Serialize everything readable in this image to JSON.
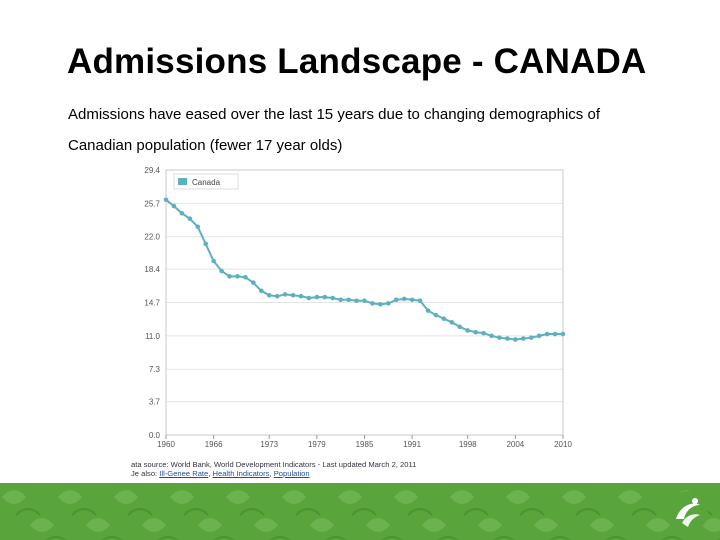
{
  "slide": {
    "title": "Admissions Landscape - CANADA",
    "body_line1": "Admissions have eased over the last 15 years due to changing demographics of",
    "body_line2": "Canadian population (fewer 17 year olds)"
  },
  "source": {
    "line1": "ata source: World Bank, World Development Indicators - Last updated March 2, 2011",
    "line2_prefix": "Je also: ",
    "links": [
      "Ill-Genee Rate",
      "Health Indicators",
      "Population"
    ]
  },
  "colors": {
    "series": "#5fb0bf",
    "footer": "#5aa43c",
    "grid": "#e4e4e4"
  },
  "chart_data": {
    "type": "line",
    "title": "",
    "xlabel": "",
    "ylabel": "",
    "legend": {
      "position": "top-left",
      "entries": [
        "Canada"
      ]
    },
    "grid": true,
    "xlim": [
      1960,
      2010
    ],
    "ylim": [
      0,
      29.4
    ],
    "x_ticks": [
      "1960",
      "1966",
      "1973",
      "1979",
      "1985",
      "1991",
      "1998",
      "2004",
      "2010"
    ],
    "y_ticks": [
      "0.0",
      "3.7",
      "7.3",
      "11.0",
      "14.7",
      "18.4",
      "22.0",
      "25.7",
      "29.4"
    ],
    "series": [
      {
        "name": "Canada",
        "x": [
          1960,
          1961,
          1962,
          1963,
          1964,
          1965,
          1966,
          1967,
          1968,
          1969,
          1970,
          1971,
          1972,
          1973,
          1974,
          1975,
          1976,
          1977,
          1978,
          1979,
          1980,
          1981,
          1982,
          1983,
          1984,
          1985,
          1986,
          1987,
          1988,
          1989,
          1990,
          1991,
          1992,
          1993,
          1994,
          1995,
          1996,
          1997,
          1998,
          1999,
          2000,
          2001,
          2002,
          2003,
          2004,
          2005,
          2006,
          2007,
          2008,
          2009,
          2010
        ],
        "values": [
          26.1,
          25.4,
          24.6,
          24.0,
          23.1,
          21.2,
          19.3,
          18.2,
          17.6,
          17.6,
          17.5,
          16.9,
          16.0,
          15.5,
          15.4,
          15.6,
          15.5,
          15.4,
          15.2,
          15.3,
          15.3,
          15.2,
          15.0,
          15.0,
          14.9,
          14.9,
          14.6,
          14.5,
          14.6,
          15.0,
          15.1,
          15.0,
          14.9,
          13.8,
          13.3,
          12.9,
          12.5,
          12.0,
          11.6,
          11.4,
          11.3,
          11.0,
          10.8,
          10.7,
          10.6,
          10.7,
          10.8,
          11.0,
          11.2,
          11.2,
          11.2
        ]
      }
    ]
  }
}
